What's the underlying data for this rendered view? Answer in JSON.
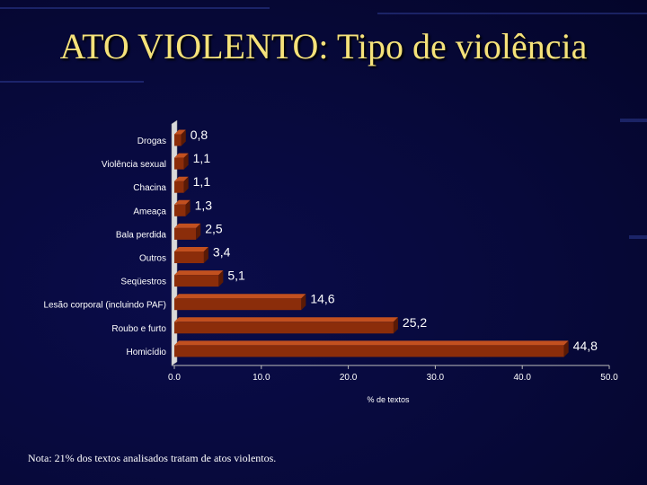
{
  "title": "ATO VIOLENTO: Tipo de violência",
  "note": "Nota: 21% dos textos analisados tratam de atos violentos.",
  "colors": {
    "bar": "#8b2d0a",
    "bar_light": "#c2501f",
    "bar_dark": "#5a1a05",
    "title": "#f5e27a",
    "background": "#07093a"
  },
  "chart_data": {
    "type": "bar",
    "orientation": "horizontal",
    "title": "",
    "xlabel": "% de textos",
    "ylabel": "",
    "xlim": [
      0,
      50
    ],
    "xticks": [
      "0.0",
      "10.0",
      "20.0",
      "30.0",
      "40.0",
      "50.0"
    ],
    "categories": [
      "Drogas",
      "Violência sexual",
      "Chacina",
      "Ameaça",
      "Bala perdida",
      "Outros",
      "Seqüestros",
      "Lesão corporal (incluindo PAF)",
      "Roubo e furto",
      "Homicídio"
    ],
    "values": [
      0.8,
      1.1,
      1.1,
      1.3,
      2.5,
      3.4,
      5.1,
      14.6,
      25.2,
      44.8
    ],
    "value_labels": [
      "0,8",
      "1,1",
      "1,1",
      "1,3",
      "2,5",
      "3,4",
      "5,1",
      "14,6",
      "25,2",
      "44,8"
    ],
    "grid": false,
    "legend": "none"
  }
}
